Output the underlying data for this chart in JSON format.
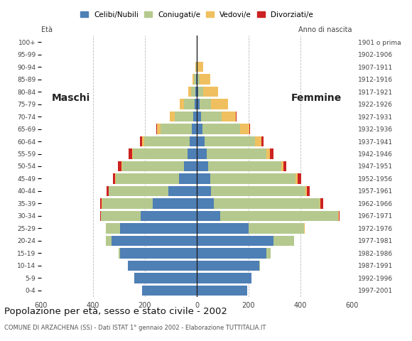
{
  "age_groups": [
    "0-4",
    "5-9",
    "10-14",
    "15-19",
    "20-24",
    "25-29",
    "30-34",
    "35-39",
    "40-44",
    "45-49",
    "50-54",
    "55-59",
    "60-64",
    "65-69",
    "70-74",
    "75-79",
    "80-84",
    "85-89",
    "90-94",
    "95-99",
    "100+"
  ],
  "birth_years": [
    "1997-2001",
    "1992-1996",
    "1987-1991",
    "1982-1986",
    "1977-1981",
    "1972-1976",
    "1967-1971",
    "1962-1966",
    "1957-1961",
    "1952-1956",
    "1947-1951",
    "1942-1946",
    "1937-1941",
    "1932-1936",
    "1927-1931",
    "1922-1926",
    "1917-1921",
    "1912-1916",
    "1907-1911",
    "1902-1906",
    "1901 o prima"
  ],
  "males": {
    "celibe": [
      210,
      240,
      265,
      295,
      330,
      295,
      215,
      170,
      110,
      68,
      48,
      36,
      28,
      20,
      14,
      8,
      4,
      2,
      0,
      0,
      0
    ],
    "coniugato": [
      0,
      1,
      2,
      5,
      20,
      55,
      155,
      195,
      230,
      245,
      240,
      210,
      175,
      120,
      70,
      40,
      18,
      8,
      3,
      0,
      0
    ],
    "vedovo": [
      0,
      0,
      0,
      0,
      0,
      0,
      0,
      1,
      1,
      2,
      3,
      4,
      8,
      12,
      20,
      18,
      12,
      5,
      1,
      0,
      0
    ],
    "divorziato": [
      0,
      0,
      0,
      0,
      0,
      1,
      3,
      6,
      7,
      8,
      12,
      14,
      8,
      3,
      1,
      0,
      0,
      0,
      0,
      0,
      0
    ]
  },
  "females": {
    "nubile": [
      195,
      210,
      240,
      270,
      295,
      200,
      90,
      65,
      55,
      52,
      45,
      38,
      30,
      22,
      16,
      10,
      6,
      4,
      2,
      1,
      0
    ],
    "coniugata": [
      0,
      2,
      5,
      15,
      80,
      215,
      455,
      410,
      365,
      330,
      280,
      230,
      195,
      145,
      80,
      45,
      20,
      8,
      2,
      0,
      0
    ],
    "vedova": [
      0,
      0,
      0,
      0,
      0,
      1,
      2,
      3,
      5,
      8,
      10,
      15,
      25,
      35,
      55,
      65,
      55,
      40,
      20,
      2,
      0
    ],
    "divorziata": [
      0,
      0,
      0,
      0,
      0,
      2,
      5,
      10,
      12,
      14,
      10,
      12,
      8,
      5,
      2,
      1,
      0,
      0,
      0,
      0,
      0
    ]
  },
  "colors": {
    "celibe": "#4e7fb5",
    "coniugato": "#b5c98e",
    "vedovo": "#f0c060",
    "divorziato": "#cc2222"
  },
  "xlim": 600,
  "title": "Popolazione per età, sesso e stato civile - 2002",
  "subtitle": "COMUNE DI ARZACHENA (SS) - Dati ISTAT 1° gennaio 2002 - Elaborazione TUTTITALIA.IT",
  "legend_labels": [
    "Celibi/Nubili",
    "Coniugati/e",
    "Vedovi/e",
    "Divorziati/e"
  ],
  "eta_label": "Età",
  "anno_label": "Anno di nascita",
  "maschi_label": "Maschi",
  "femmine_label": "Femmine",
  "bg_color": "#ffffff",
  "bar_height": 0.82
}
